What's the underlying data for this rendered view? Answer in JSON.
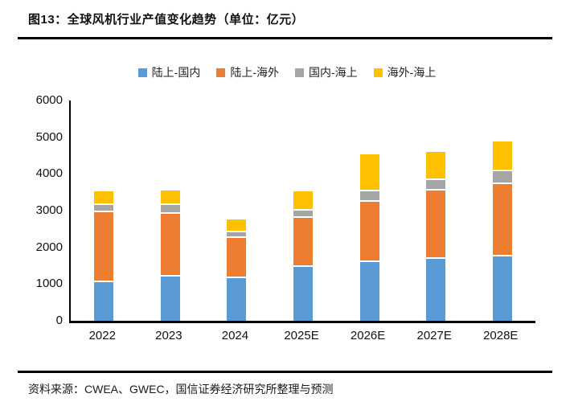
{
  "header": {
    "title": "图13：全球风机行业产值变化趋势（单位：亿元）"
  },
  "footer": {
    "source": "资料来源：CWEA、GWEC，国信证券经济研究所整理与预测"
  },
  "chart_data": {
    "type": "bar",
    "stacked": true,
    "title": "全球风机行业产值变化趋势",
    "unit": "亿元",
    "categories": [
      "2022",
      "2023",
      "2024",
      "2025E",
      "2026E",
      "2027E",
      "2028E"
    ],
    "series": [
      {
        "name": "陆上-国内",
        "color": "#5B9BD5",
        "values": [
          1050,
          1200,
          1160,
          1460,
          1600,
          1680,
          1750
        ]
      },
      {
        "name": "陆上-海外",
        "color": "#ED7D31",
        "values": [
          1900,
          1720,
          1090,
          1350,
          1640,
          1860,
          1970
        ]
      },
      {
        "name": "国内-海上",
        "color": "#A5A5A5",
        "values": [
          210,
          230,
          170,
          200,
          280,
          300,
          350
        ]
      },
      {
        "name": "海外-海上",
        "color": "#FFC000",
        "values": [
          360,
          400,
          340,
          510,
          1020,
          760,
          820
        ]
      }
    ],
    "totals": [
      3520,
      3550,
      2760,
      3520,
      4540,
      4600,
      4890
    ],
    "ylim": [
      0,
      6000
    ],
    "yticks": [
      0,
      1000,
      2000,
      3000,
      4000,
      5000,
      6000
    ],
    "legend_position": "top",
    "grid": false,
    "axis_color": "#000000"
  }
}
